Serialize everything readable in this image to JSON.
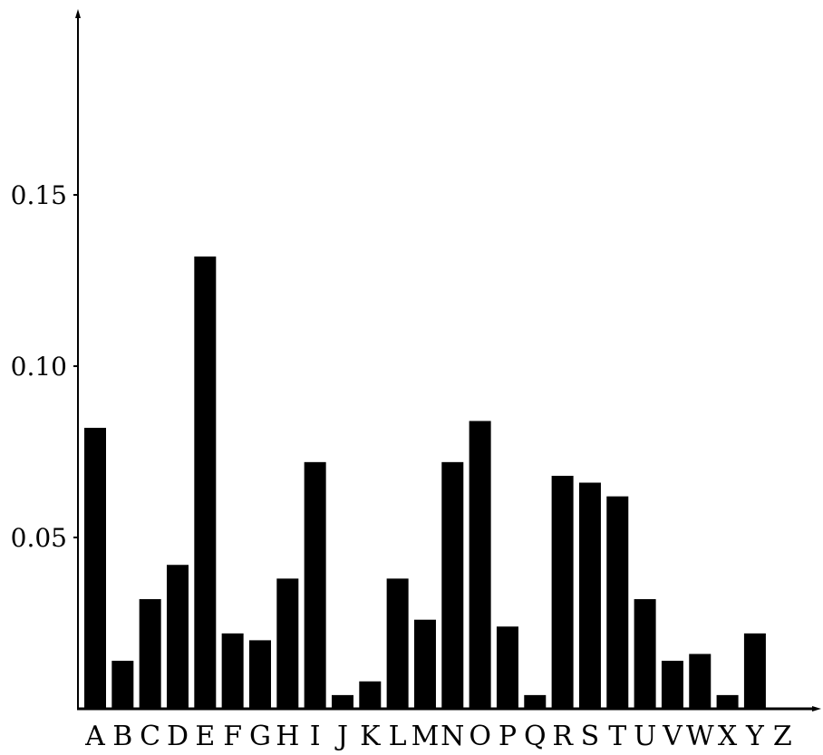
{
  "chart_data": {
    "type": "bar",
    "title": "",
    "xlabel": "",
    "ylabel": "",
    "ylim": [
      0,
      0.2
    ],
    "grid": false,
    "legend": "none",
    "bar_color": "#000000",
    "yticks": [
      {
        "value": 0.05,
        "label": "0.05"
      },
      {
        "value": 0.1,
        "label": "0.10"
      },
      {
        "value": 0.15,
        "label": "0.15"
      }
    ],
    "categories": [
      "A",
      "B",
      "C",
      "D",
      "E",
      "F",
      "G",
      "H",
      "I",
      "J",
      "K",
      "L",
      "M",
      "N",
      "O",
      "P",
      "Q",
      "R",
      "S",
      "T",
      "U",
      "V",
      "W",
      "X",
      "Y",
      "Z"
    ],
    "values": [
      0.082,
      0.014,
      0.032,
      0.042,
      0.132,
      0.022,
      0.02,
      0.038,
      0.072,
      0.004,
      0.008,
      0.038,
      0.026,
      0.072,
      0.084,
      0.024,
      0.004,
      0.068,
      0.066,
      0.062,
      0.032,
      0.014,
      0.016,
      0.004,
      0.022,
      0.0
    ]
  }
}
